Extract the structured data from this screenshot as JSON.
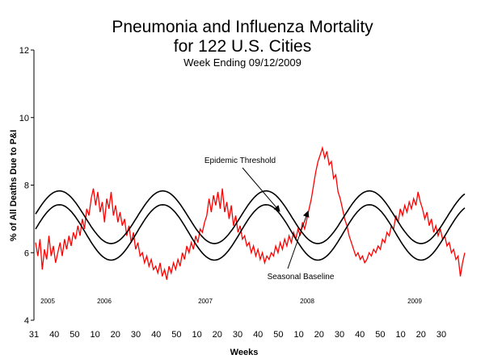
{
  "chart_data": {
    "type": "line",
    "title": "Pneumonia and Influenza Mortality",
    "title_line2": "for 122 U.S. Cities",
    "subtitle": "Week Ending 09/12/2009",
    "xlabel": "Weeks",
    "ylabel": "% of All Deaths Due to P&I",
    "ylim": [
      4,
      12
    ],
    "y_ticks": [
      "4",
      "6",
      "8",
      "10",
      "12"
    ],
    "x_ticks": [
      "31",
      "40",
      "50",
      "10",
      "20",
      "30",
      "40",
      "50",
      "10",
      "20",
      "30",
      "40",
      "50",
      "10",
      "20",
      "30",
      "40",
      "50",
      "10",
      "20",
      "30"
    ],
    "years": [
      "2005",
      "2006",
      "2007",
      "2008",
      "2009"
    ],
    "grid": false,
    "legend": "none",
    "annotations": [
      "Epidemic Threshold",
      "Seasonal Baseline"
    ],
    "series": [
      {
        "name": "",
        "color": "#ff0000",
        "values": [
          6.3,
          5.9,
          6.4,
          5.5,
          6.1,
          5.8,
          6.5,
          5.9,
          6.2,
          5.7,
          6.0,
          6.3,
          5.9,
          6.4,
          6.1,
          6.5,
          6.2,
          6.6,
          6.4,
          6.8,
          6.5,
          7.0,
          6.7,
          7.3,
          7.1,
          7.6,
          7.9,
          7.4,
          7.8,
          7.2,
          7.5,
          6.9,
          7.6,
          7.3,
          7.8,
          7.1,
          7.4,
          6.9,
          7.2,
          6.8,
          7.0,
          6.5,
          6.8,
          6.3,
          6.6,
          6.1,
          6.3,
          5.9,
          6.0,
          5.7,
          5.9,
          5.6,
          5.8,
          5.5,
          5.6,
          5.4,
          5.7,
          5.3,
          5.5,
          5.2,
          5.6,
          5.4,
          5.7,
          5.5,
          5.8,
          5.6,
          6.0,
          5.8,
          6.2,
          6.0,
          6.3,
          6.1,
          6.5,
          6.3,
          6.7,
          6.6,
          6.9,
          7.1,
          7.6,
          7.2,
          7.7,
          7.4,
          7.8,
          7.3,
          7.9,
          7.2,
          7.5,
          7.0,
          7.4,
          6.8,
          7.1,
          6.6,
          6.8,
          6.4,
          6.5,
          6.2,
          6.3,
          6.0,
          6.2,
          5.9,
          6.1,
          5.8,
          6.0,
          5.7,
          5.9,
          5.8,
          6.0,
          5.9,
          6.2,
          6.0,
          6.3,
          6.1,
          6.4,
          6.2,
          6.5,
          6.3,
          6.6,
          6.4,
          6.7,
          6.5,
          6.9,
          6.7,
          7.0,
          7.3,
          7.6,
          8.0,
          8.4,
          8.7,
          8.9,
          9.1,
          8.8,
          9.0,
          8.6,
          8.7,
          8.2,
          8.3,
          7.8,
          7.6,
          7.3,
          7.0,
          6.8,
          6.5,
          6.3,
          6.1,
          5.9,
          6.0,
          5.8,
          5.9,
          5.7,
          5.8,
          6.0,
          5.9,
          6.1,
          6.0,
          6.2,
          6.1,
          6.4,
          6.3,
          6.6,
          6.5,
          6.8,
          6.7,
          7.1,
          6.9,
          7.3,
          7.1,
          7.4,
          7.2,
          7.5,
          7.3,
          7.6,
          7.4,
          7.8,
          7.5,
          7.3,
          7.0,
          7.2,
          6.8,
          7.0,
          6.6,
          6.8,
          6.5,
          6.7,
          6.4,
          6.5,
          6.2,
          6.3,
          6.0,
          6.1,
          5.8,
          5.9,
          5.3,
          5.7,
          6.0
        ]
      },
      {
        "name": "",
        "color": "#000000",
        "curve": "epidemic-threshold",
        "mean": 7.05,
        "amplitude": 0.78,
        "period_weeks": 52,
        "peak_week_offset": 12
      },
      {
        "name": "",
        "color": "#000000",
        "curve": "seasonal-baseline",
        "mean": 6.6,
        "amplitude": 0.82,
        "period_weeks": 52,
        "peak_week_offset": 12
      }
    ]
  }
}
